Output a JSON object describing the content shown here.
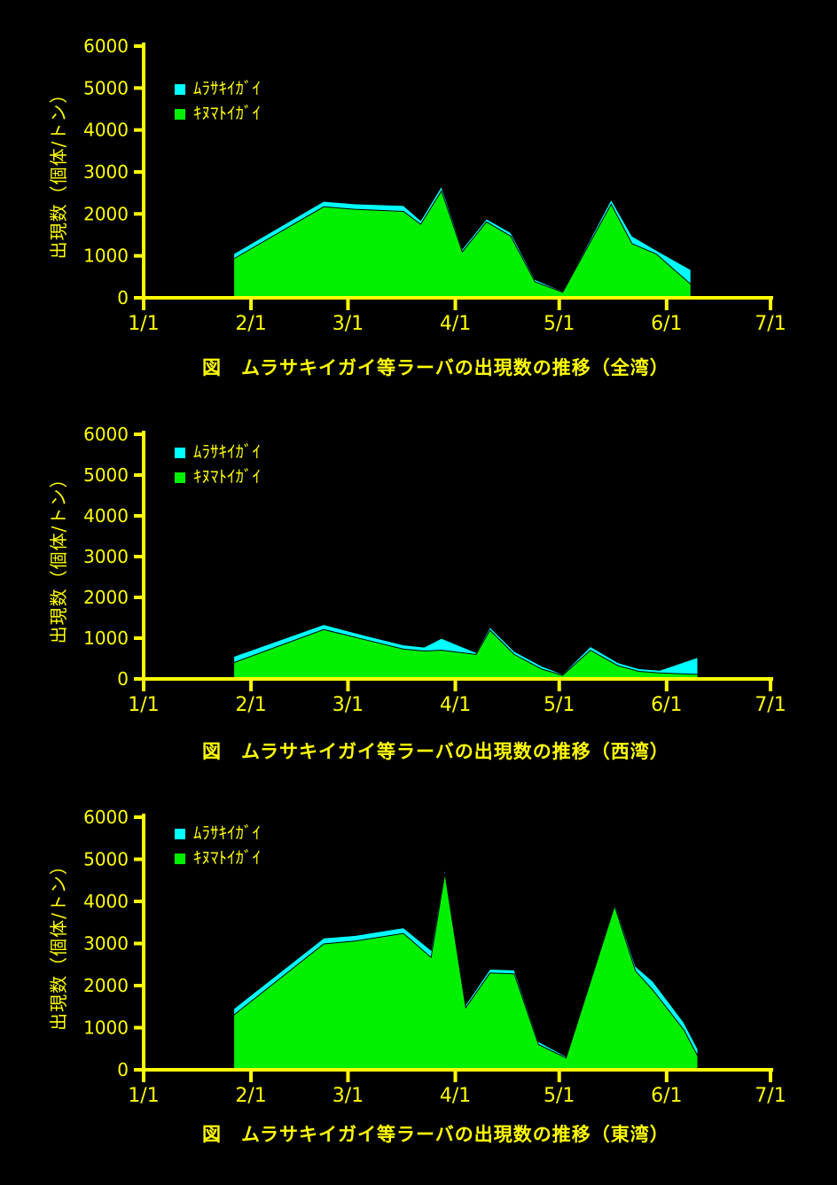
{
  "axes": {
    "y_label": "出現数（個体/トン）",
    "y_ticks": [
      0,
      1000,
      2000,
      3000,
      4000,
      5000,
      6000
    ],
    "y_max": 6000,
    "x_ticks": [
      {
        "day": 0,
        "label": "1/1"
      },
      {
        "day": 31,
        "label": "2/1"
      },
      {
        "day": 59,
        "label": "3/1"
      },
      {
        "day": 90,
        "label": "4/1"
      },
      {
        "day": 120,
        "label": "5/1"
      },
      {
        "day": 151,
        "label": "6/1"
      },
      {
        "day": 181,
        "label": "7/1"
      }
    ],
    "axis_color": "#ffff00",
    "text_color": "#ffff00",
    "background_color": "#000000"
  },
  "chart_data": [
    {
      "type": "area",
      "stacked": true,
      "title": "図　ムラサキイガイ等ラーバの出現数の推移（全湾）",
      "ylabel": "出現数（個体/トン）",
      "ylim": [
        0,
        6000
      ],
      "legend_position": "top-left-inside",
      "x_unit": "days from 1/1",
      "x": [
        26,
        52,
        61,
        75,
        80,
        86,
        92,
        99,
        106,
        113,
        121,
        135,
        141,
        148,
        158
      ],
      "series": [
        {
          "name": "ｷﾇﾏﾄｲｶﾞｲ",
          "color": "#00f000",
          "values": [
            930,
            2170,
            2110,
            2060,
            1750,
            2550,
            1095,
            1810,
            1470,
            380,
            130,
            2230,
            1290,
            1045,
            320
          ]
        },
        {
          "name": "ﾑﾗｻｷｲｶﾞｲ",
          "color": "#00ffff",
          "values": [
            120,
            130,
            130,
            140,
            95,
            105,
            70,
            70,
            85,
            55,
            20,
            110,
            185,
            90,
            350
          ]
        }
      ]
    },
    {
      "type": "area",
      "stacked": true,
      "title": "図　ムラサキイガイ等ラーバの出現数の推移（西湾）",
      "ylabel": "出現数（個体/トン）",
      "ylim": [
        0,
        6000
      ],
      "legend_position": "top-left-inside",
      "x_unit": "days from 1/1",
      "x": [
        26,
        52,
        64,
        75,
        81,
        86,
        96,
        100,
        107,
        115,
        121,
        129,
        137,
        143,
        149,
        160
      ],
      "series": [
        {
          "name": "ｷﾇﾏﾄｲｶﾞｲ",
          "color": "#00f000",
          "values": [
            400,
            1210,
            960,
            730,
            685,
            705,
            600,
            1195,
            600,
            240,
            90,
            705,
            325,
            185,
            145,
            110
          ]
        },
        {
          "name": "ﾑﾗｻｷｲｶﾞｲ",
          "color": "#00ffff",
          "values": [
            150,
            125,
            105,
            105,
            95,
            290,
            45,
            75,
            75,
            70,
            25,
            90,
            75,
            65,
            65,
            420
          ]
        }
      ]
    },
    {
      "type": "area",
      "stacked": true,
      "title": "図　ムラサキイガイ等ラーバの出現数の推移（東湾）",
      "ylabel": "出現数（個体/トン）",
      "ylim": [
        0,
        6000
      ],
      "legend_position": "top-left-inside",
      "x_unit": "days from 1/1",
      "x": [
        26,
        52,
        61,
        75,
        83,
        87,
        93,
        100,
        107,
        114,
        122,
        136,
        142,
        147,
        156,
        160
      ],
      "series": [
        {
          "name": "ｷﾇﾏﾄｲｶﾞｲ",
          "color": "#00f000",
          "values": [
            1300,
            2990,
            3060,
            3240,
            2670,
            4670,
            1475,
            2300,
            2280,
            600,
            280,
            3890,
            2350,
            1895,
            950,
            320
          ]
        },
        {
          "name": "ﾑﾗｻｷｲｶﾞｲ",
          "color": "#00ffff",
          "values": [
            150,
            140,
            130,
            135,
            170,
            110,
            70,
            90,
            90,
            70,
            35,
            70,
            110,
            210,
            175,
            170
          ]
        }
      ]
    }
  ]
}
